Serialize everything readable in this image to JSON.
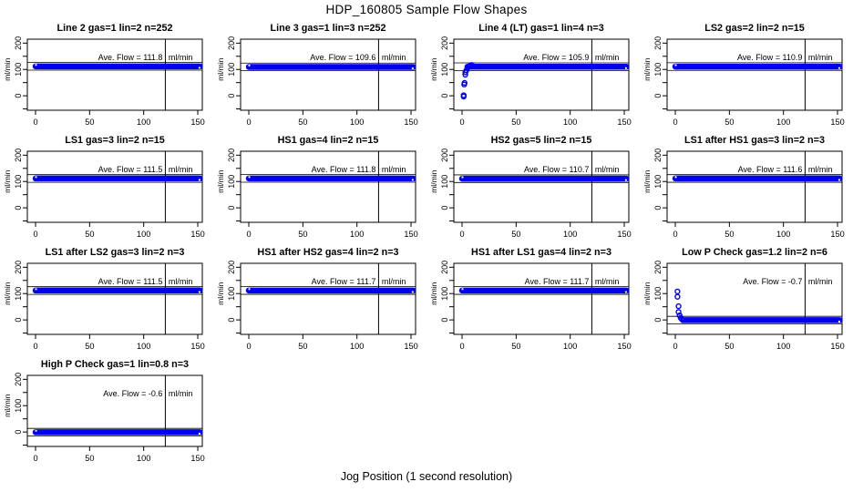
{
  "page": {
    "title": "HDP_160805  Sample Flow Shapes",
    "xlabel": "Jog Position (1 second resolution)"
  },
  "chart_data": {
    "type": "scatter",
    "grid": [
      4,
      4
    ],
    "point_color": "#0000ee",
    "axes": {
      "x_range": [
        -7.6,
        154.2
      ],
      "y_range": [
        -55,
        215
      ],
      "x_ticks": [
        0,
        50,
        100,
        150
      ],
      "y_ticks": [
        -50,
        0,
        50,
        100,
        150,
        200
      ],
      "y_labeled_ticks": [
        0,
        100,
        200
      ],
      "y_label": "ml/min",
      "vline_x": 120
    },
    "ave_prefix": "Ave. Flow =  ",
    "unit": "ml/min",
    "plots": [
      {
        "title": "Line 2 gas=1 lin=2 n=252",
        "ave_flow": "111.8",
        "flat": {
          "from": 0,
          "to": 152,
          "y": 111.8
        },
        "ref_lines": [
          121.8,
          101.8
        ],
        "points": []
      },
      {
        "title": "Line 3 gas=1 lin=3 n=252",
        "ave_flow": "109.6",
        "flat": {
          "from": 0,
          "to": 152,
          "y": 109.6
        },
        "ref_lines": [
          119.6,
          99.6
        ],
        "points": []
      },
      {
        "title": "Line 4 (LT) gas=1 lin=4 n=3",
        "ave_flow": "105.9",
        "flat": {
          "from": 5,
          "to": 152,
          "y": 110.5
        },
        "ref_lines": [
          115.9,
          95.9
        ],
        "points": [
          [
            1.5,
            -3
          ],
          [
            1.5,
            2
          ],
          [
            2,
            43
          ],
          [
            2.3,
            49
          ],
          [
            3,
            80
          ],
          [
            3,
            89
          ],
          [
            4,
            97
          ],
          [
            5,
            105
          ],
          [
            6,
            110
          ],
          [
            7.5,
            115
          ],
          [
            9,
            117
          ]
        ]
      },
      {
        "title": "LS2 gas=2 lin=2 n=15",
        "ave_flow": "110.9",
        "flat": {
          "from": 0,
          "to": 152,
          "y": 110.9
        },
        "ref_lines": [
          120.9,
          100.9
        ],
        "points": []
      },
      {
        "title": "LS1 gas=3 lin=2 n=15",
        "ave_flow": "111.5",
        "flat": {
          "from": 0,
          "to": 152,
          "y": 111.5
        },
        "ref_lines": [
          121.5,
          101.5
        ],
        "points": []
      },
      {
        "title": "HS1 gas=4 lin=2 n=15",
        "ave_flow": "111.8",
        "flat": {
          "from": 0,
          "to": 152,
          "y": 111.8
        },
        "ref_lines": [
          121.8,
          101.8
        ],
        "points": []
      },
      {
        "title": "HS2 gas=5 lin=2 n=15",
        "ave_flow": "110.7",
        "flat": {
          "from": 0,
          "to": 152,
          "y": 110.7
        },
        "ref_lines": [
          120.7,
          100.7
        ],
        "points": []
      },
      {
        "title": "LS1 after HS1 gas=3 lin=2 n=3",
        "ave_flow": "111.6",
        "flat": {
          "from": 0,
          "to": 152,
          "y": 111.6
        },
        "ref_lines": [
          121.6,
          101.6
        ],
        "points": []
      },
      {
        "title": "LS1 after LS2 gas=3 lin=2 n=3",
        "ave_flow": "111.5",
        "flat": {
          "from": 0,
          "to": 152,
          "y": 111.5
        },
        "ref_lines": [
          121.5,
          101.5
        ],
        "points": []
      },
      {
        "title": "HS1 after HS2 gas=4 lin=2 n=3",
        "ave_flow": "111.7",
        "flat": {
          "from": 0,
          "to": 152,
          "y": 111.7
        },
        "ref_lines": [
          121.7,
          101.7
        ],
        "points": []
      },
      {
        "title": "HS1 after LS1 gas=4 lin=2 n=3",
        "ave_flow": "111.7",
        "flat": {
          "from": 0,
          "to": 152,
          "y": 111.7
        },
        "ref_lines": [
          121.7,
          101.7
        ],
        "points": []
      },
      {
        "title": "Low P Check gas=1.2 lin=2 n=6",
        "ave_flow": "-0.7",
        "flat": {
          "from": 7,
          "to": 152,
          "y": -1
        },
        "ref_lines": [
          9.3,
          -10.7
        ],
        "points": [
          [
            2,
            108
          ],
          [
            2,
            88
          ],
          [
            3,
            52
          ],
          [
            3,
            30
          ],
          [
            4,
            17
          ],
          [
            5,
            8
          ],
          [
            6,
            3
          ]
        ]
      },
      {
        "title": "High P Check gas=1 lin=0.8 n=3",
        "ave_flow": "-0.6",
        "flat": {
          "from": 0,
          "to": 152,
          "y": -1
        },
        "ref_lines": [
          9.4,
          -10.6
        ],
        "points": []
      }
    ]
  }
}
